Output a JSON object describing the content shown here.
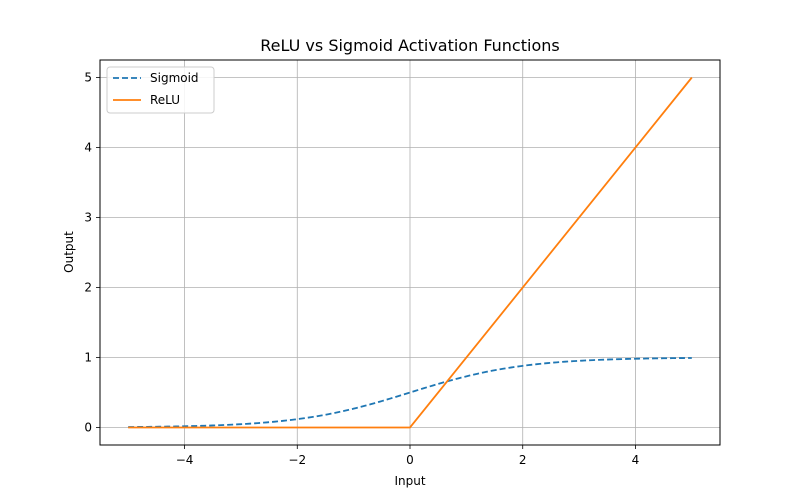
{
  "chart_data": {
    "type": "line",
    "title": "ReLU vs Sigmoid Activation Functions",
    "xlabel": "Input",
    "ylabel": "Output",
    "xlim": [
      -5.5,
      5.5
    ],
    "ylim": [
      -0.25,
      5.25
    ],
    "xticks": [
      -4,
      -2,
      0,
      2,
      4
    ],
    "xtick_labels": [
      "−4",
      "−2",
      "0",
      "2",
      "4"
    ],
    "yticks": [
      0,
      1,
      2,
      3,
      4,
      5
    ],
    "ytick_labels": [
      "0",
      "1",
      "2",
      "3",
      "4",
      "5"
    ],
    "grid": true,
    "legend_position": "upper-left",
    "series": [
      {
        "name": "Sigmoid",
        "function": "sigmoid",
        "color": "#1f77b4",
        "style": "dashed",
        "x": [
          -5,
          -4,
          -3,
          -2,
          -1,
          0,
          1,
          2,
          3,
          4,
          5
        ],
        "y": [
          0.007,
          0.018,
          0.047,
          0.119,
          0.269,
          0.5,
          0.731,
          0.881,
          0.953,
          0.982,
          0.993
        ]
      },
      {
        "name": "ReLU",
        "function": "relu",
        "color": "#ff7f0e",
        "style": "solid",
        "x": [
          -5,
          0,
          5
        ],
        "y": [
          0,
          0,
          5
        ]
      }
    ]
  }
}
